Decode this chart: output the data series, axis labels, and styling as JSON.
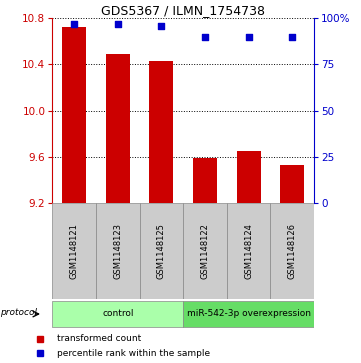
{
  "title": "GDS5367 / ILMN_1754738",
  "samples": [
    "GSM1148121",
    "GSM1148123",
    "GSM1148125",
    "GSM1148122",
    "GSM1148124",
    "GSM1148126"
  ],
  "bar_values": [
    10.72,
    10.49,
    10.43,
    9.59,
    9.65,
    9.53
  ],
  "percentile_values": [
    97,
    97,
    96,
    90,
    90,
    90
  ],
  "bar_color": "#cc0000",
  "dot_color": "#0000cc",
  "ylim_left": [
    9.2,
    10.8
  ],
  "ylim_right": [
    0,
    100
  ],
  "yticks_left": [
    9.2,
    9.6,
    10.0,
    10.4,
    10.8
  ],
  "yticks_right": [
    0,
    25,
    50,
    75,
    100
  ],
  "ytick_labels_right": [
    "0",
    "25",
    "50",
    "75",
    "100%"
  ],
  "groups": [
    {
      "label": "control",
      "indices": [
        0,
        1,
        2
      ],
      "color": "#aaffaa"
    },
    {
      "label": "miR-542-3p overexpression",
      "indices": [
        3,
        4,
        5
      ],
      "color": "#66dd66"
    }
  ],
  "protocol_label": "protocol",
  "legend_items": [
    {
      "label": "transformed count",
      "color": "#cc0000",
      "marker": "s"
    },
    {
      "label": "percentile rank within the sample",
      "color": "#0000cc",
      "marker": "s"
    }
  ],
  "bar_width": 0.55,
  "background_color": "#ffffff",
  "gridline_color": "#000000",
  "sample_box_color": "#cccccc",
  "title_fontsize": 9,
  "tick_fontsize": 7.5,
  "sample_fontsize": 6,
  "group_fontsize": 6.5,
  "legend_fontsize": 6.5
}
